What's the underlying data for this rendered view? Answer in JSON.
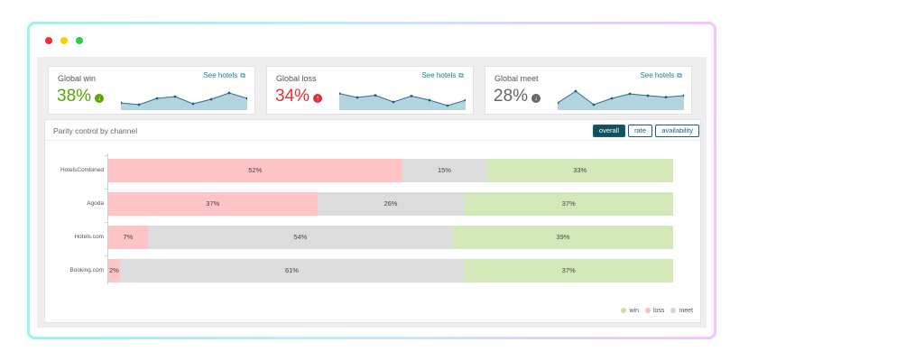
{
  "window": {
    "controls": [
      "close",
      "minimize",
      "maximize"
    ]
  },
  "kpis": [
    {
      "label": "Global win",
      "value": "38%",
      "link": "See hotels",
      "color": "#57a500",
      "arrow": "down",
      "arrow_color": "#57a500",
      "trend": [
        0.3,
        0.2,
        0.55,
        0.65,
        0.25,
        0.5,
        0.85,
        0.55
      ]
    },
    {
      "label": "Global loss",
      "value": "34%",
      "link": "See hotels",
      "color": "#e0303b",
      "arrow": "up",
      "arrow_color": "#e0303b",
      "trend": [
        0.82,
        0.6,
        0.72,
        0.35,
        0.68,
        0.45,
        0.15,
        0.45
      ]
    },
    {
      "label": "Global meet",
      "value": "28%",
      "link": "See hotels",
      "color": "#666666",
      "arrow": "down",
      "arrow_color": "#666666",
      "trend": [
        0.3,
        0.95,
        0.2,
        0.55,
        0.8,
        0.7,
        0.62,
        0.7
      ]
    }
  ],
  "panel": {
    "title": "Parity control by channel",
    "buttons": [
      {
        "label": "overall",
        "active": true
      },
      {
        "label": "rate",
        "active": false
      },
      {
        "label": "availability",
        "active": false
      }
    ]
  },
  "chart_data": {
    "type": "bar",
    "orientation": "horizontal",
    "stacked": true,
    "categories": [
      "HotelsCombined",
      "Agoda",
      "Hotels.com",
      "Booking.com"
    ],
    "series": [
      {
        "name": "loss",
        "values": [
          52,
          37,
          7,
          2
        ],
        "color": "#ffc4c6"
      },
      {
        "name": "meet",
        "values": [
          15,
          26,
          54,
          61
        ],
        "color": "#dcdcdc"
      },
      {
        "name": "win",
        "values": [
          33,
          37,
          39,
          37
        ],
        "color": "#d3e8b8"
      }
    ],
    "legend": [
      {
        "name": "win",
        "color": "#c9e3a8"
      },
      {
        "name": "loss",
        "color": "#ffb8bb"
      },
      {
        "name": "meet",
        "color": "#d4d4d4"
      }
    ],
    "legend_position": "bottom-right"
  }
}
